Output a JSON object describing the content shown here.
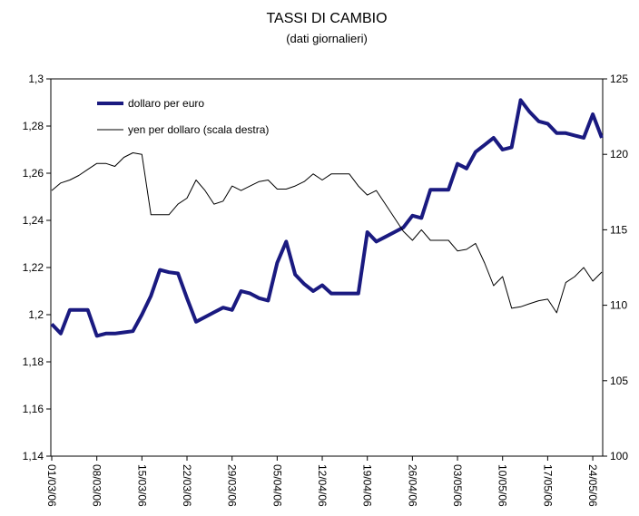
{
  "chart_data": {
    "type": "line",
    "title": "TASSI DI CAMBIO",
    "subtitle": "(dati giornalieri)",
    "categories": [
      "01/03/06",
      null,
      null,
      null,
      null,
      "08/03/06",
      null,
      null,
      null,
      null,
      "15/03/06",
      null,
      null,
      null,
      null,
      "22/03/06",
      null,
      null,
      null,
      null,
      "29/03/06",
      null,
      null,
      null,
      null,
      "05/04/06",
      null,
      null,
      null,
      null,
      "12/04/06",
      null,
      null,
      null,
      null,
      "19/04/06",
      null,
      null,
      null,
      null,
      "26/04/06",
      null,
      null,
      null,
      null,
      "03/05/06",
      null,
      null,
      null,
      null,
      "10/05/06",
      null,
      null,
      null,
      null,
      "17/05/06",
      null,
      null,
      null,
      null,
      "24/05/06",
      null
    ],
    "series": [
      {
        "name": "dollaro per euro",
        "color": "#1a1a80",
        "values": [
          1.196,
          1.192,
          1.202,
          1.202,
          1.202,
          1.191,
          1.192,
          1.192,
          1.1925,
          1.193,
          1.2,
          1.208,
          1.219,
          1.218,
          1.2175,
          1.207,
          1.197,
          1.199,
          1.201,
          1.203,
          1.202,
          1.21,
          1.209,
          1.207,
          1.206,
          1.222,
          1.231,
          1.217,
          1.213,
          1.21,
          1.2125,
          1.209,
          1.209,
          1.209,
          1.209,
          1.235,
          1.231,
          1.233,
          1.235,
          1.237,
          1.242,
          1.241,
          1.253,
          1.253,
          1.253,
          1.264,
          1.262,
          1.269,
          1.272,
          1.275,
          1.27,
          1.271,
          1.291,
          1.286,
          1.282,
          1.281,
          1.277,
          1.277,
          1.276,
          1.275,
          1.285,
          1.275
        ]
      },
      {
        "name": "yen per dollaro (scala destra)",
        "color": "#000000",
        "axis": "y2",
        "values": [
          117.6,
          118.1,
          118.3,
          118.6,
          119.0,
          119.4,
          119.4,
          119.2,
          119.8,
          120.1,
          120.0,
          116.0,
          116.0,
          116.0,
          116.7,
          117.1,
          118.3,
          117.6,
          116.7,
          116.9,
          117.9,
          117.6,
          117.9,
          118.2,
          118.3,
          117.7,
          117.7,
          117.9,
          118.2,
          118.7,
          118.3,
          118.7,
          118.7,
          118.7,
          117.9,
          117.3,
          117.6,
          116.7,
          115.8,
          114.9,
          114.3,
          115.0,
          114.3,
          114.3,
          114.3,
          113.6,
          113.7,
          114.1,
          112.8,
          111.3,
          111.9,
          109.8,
          109.9,
          110.1,
          110.3,
          110.4,
          109.5,
          111.5,
          111.9,
          112.5,
          111.6,
          112.2
        ]
      }
    ],
    "ylim": [
      1.14,
      1.3
    ],
    "yticks": [
      {
        "value": 1.14,
        "label": "1,14"
      },
      {
        "value": 1.16,
        "label": "1,16"
      },
      {
        "value": 1.18,
        "label": "1,18"
      },
      {
        "value": 1.2,
        "label": "1,2"
      },
      {
        "value": 1.22,
        "label": "1,22"
      },
      {
        "value": 1.24,
        "label": "1,24"
      },
      {
        "value": 1.26,
        "label": "1,26"
      },
      {
        "value": 1.28,
        "label": "1,28"
      },
      {
        "value": 1.3,
        "label": "1,3"
      }
    ],
    "y2lim": [
      100,
      125
    ],
    "y2ticks": [
      100,
      105,
      110,
      115,
      120,
      125
    ],
    "grid": false,
    "legend": "top-left"
  }
}
